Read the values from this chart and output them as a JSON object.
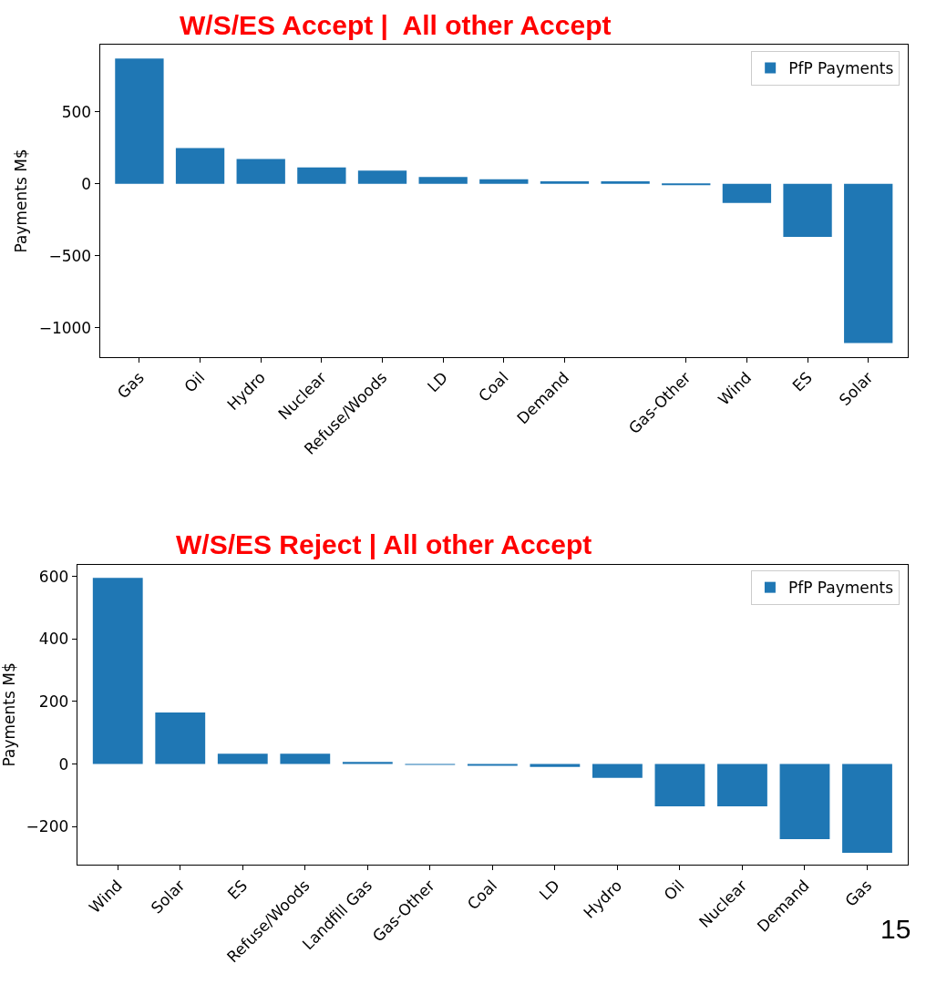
{
  "chart_data": [
    {
      "type": "bar",
      "title": "W/S/ES Accept |  All other Accept",
      "ylabel": "Payments M$",
      "categories": [
        "Gas",
        "Oil",
        "Hydro",
        "Nuclear",
        "Refuse/Woods",
        "LD",
        "Coal",
        "Demand",
        null,
        "Gas-Other",
        "Wind",
        "ES",
        "Solar"
      ],
      "series": [
        {
          "name": "PfP Payments",
          "color": "#1f77b4",
          "values": [
            871,
            250,
            173,
            114,
            92,
            48,
            33,
            18,
            18,
            -4,
            -132,
            -368,
            -1107
          ]
        }
      ],
      "ylim": [
        -1202,
        967
      ],
      "yticks": [
        {
          "value": -1000,
          "label": "−1000"
        },
        {
          "value": -500,
          "label": "−500"
        },
        0,
        500
      ],
      "legend": "top right"
    },
    {
      "type": "bar",
      "title": "W/S/ES Reject | All other Accept",
      "ylabel": "Payments M$",
      "categories": [
        "Wind",
        "Solar",
        "ES",
        "Refuse/Woods",
        "Landfill Gas",
        "Gas-Other",
        "Coal",
        "LD",
        "Hydro",
        "Oil",
        "Nuclear",
        "Demand",
        "Gas"
      ],
      "series": [
        {
          "name": "PfP Payments",
          "color": "#1f77b4",
          "values": [
            595,
            165,
            33,
            33,
            7,
            -2,
            -5,
            -9,
            -44,
            -135,
            -135,
            -240,
            -284
          ]
        }
      ],
      "ylim": [
        -322,
        638
      ],
      "yticks": [
        {
          "value": -200,
          "label": "−200"
        },
        0,
        200,
        400,
        600
      ],
      "legend": "top right",
      "annotations": [
        "15"
      ]
    }
  ]
}
